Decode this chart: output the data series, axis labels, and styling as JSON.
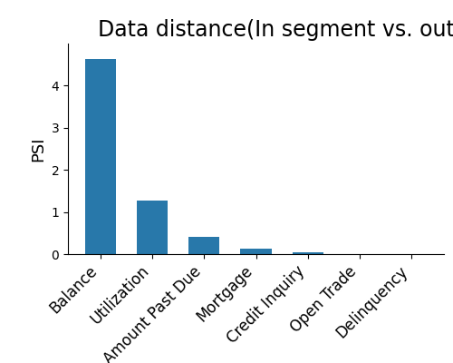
{
  "title": "Data distance(In segment vs. out of segment)",
  "categories": [
    "Balance",
    "Utilization",
    "Amount Past Due",
    "Mortgage",
    "Credit Inquiry",
    "Open Trade",
    "Delinquency"
  ],
  "values": [
    4.63,
    1.28,
    0.42,
    0.13,
    0.04,
    0.005,
    0.002
  ],
  "bar_color": "#2878aa",
  "ylabel": "PSI",
  "ylim": [
    0,
    5.0
  ],
  "title_fontsize": 17,
  "ylabel_fontsize": 13,
  "tick_fontsize": 12,
  "yticks": [
    0,
    1,
    2,
    3,
    4
  ]
}
